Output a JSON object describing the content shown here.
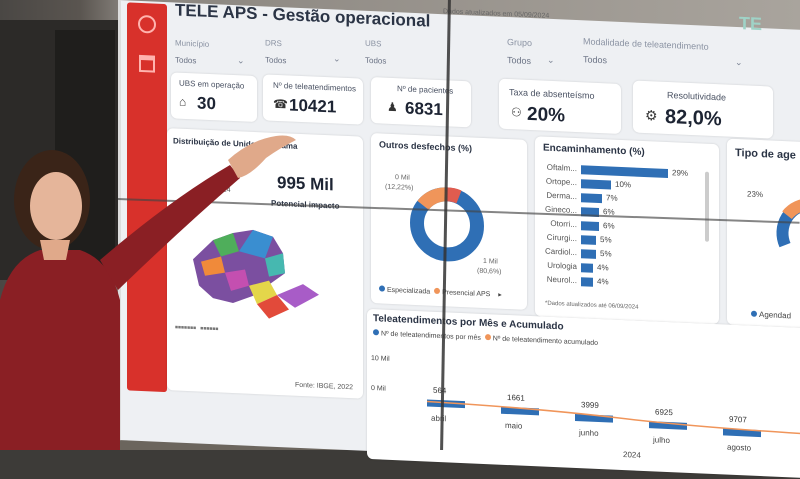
{
  "dashboard": {
    "title": "TELE APS - Gestão operacional",
    "updated_top": "Dados atualizados em 05/09/2024",
    "logo": "TE"
  },
  "filters": [
    {
      "label": "Município",
      "value": "Todos"
    },
    {
      "label": "DRS",
      "value": "Todos"
    },
    {
      "label": "UBS",
      "value": "Todos"
    },
    {
      "label": "Grupo",
      "value": "Todos"
    },
    {
      "label": "Modalidade de teleatendimento",
      "value": "Todos"
    }
  ],
  "kpis": [
    {
      "label": "UBS em operação",
      "value": "30",
      "icon": "building-icon"
    },
    {
      "label": "Nº de teleatendimentos",
      "value": "10421",
      "icon": "phone-icon"
    },
    {
      "label": "Nº de pacientes",
      "value": "6831",
      "icon": "person-icon"
    },
    {
      "label": "Taxa de absenteísmo",
      "value": "20%",
      "icon": "absent-icon"
    },
    {
      "label": "Resolutividade",
      "value": "82,0%",
      "icon": "gear-icon"
    }
  ],
  "distribution": {
    "title": "Distribuição de Unidade... grama",
    "big_value": "995 Mil",
    "sub": "Potencial impacto",
    "year": "2024",
    "source": "Fonte: IBGE, 2022"
  },
  "outros": {
    "title": "Outros desfechos (%)",
    "label_a": "0 Mil",
    "label_a_pct": "(12,22%)",
    "label_b": "1 Mil",
    "label_b_pct": "(80,6%)",
    "legend": [
      "Especializada",
      "Presencial APS"
    ],
    "colors": {
      "main": "#2f6fb5",
      "second": "#f0955a",
      "third": "#e05c4f"
    }
  },
  "encaminhamento": {
    "title": "Encaminhamento (%)",
    "rows": [
      {
        "label": "Oftalm...",
        "pct": "29%",
        "value": 29
      },
      {
        "label": "Ortope...",
        "pct": "10%",
        "value": 10
      },
      {
        "label": "Derma...",
        "pct": "7%",
        "value": 7
      },
      {
        "label": "Gineco...",
        "pct": "6%",
        "value": 6
      },
      {
        "label": "Otorri...",
        "pct": "6%",
        "value": 6
      },
      {
        "label": "Cirurgi...",
        "pct": "5%",
        "value": 5
      },
      {
        "label": "Cardiol...",
        "pct": "5%",
        "value": 5
      },
      {
        "label": "Urologia",
        "pct": "4%",
        "value": 4
      },
      {
        "label": "Neurol...",
        "pct": "4%",
        "value": 4
      }
    ],
    "footer": "*Dados atualizados até 06/09/2024"
  },
  "tipo": {
    "title": "Tipo de age",
    "pct": "23%",
    "legend": "Agendad"
  },
  "monthly": {
    "title": "Teleatendimentos por Mês e Acumulado",
    "legend_a": "Nº de teleatendimentos por mês",
    "legend_b": "Nº de teleatendimento acumulado",
    "y_top": "10 Mil",
    "y_zero": "0 Mil",
    "year": "2024",
    "months": [
      "abril",
      "maio",
      "junho",
      "julho",
      "agosto"
    ],
    "values": [
      "564",
      "1661",
      "3999",
      "6925",
      "9707"
    ]
  }
}
